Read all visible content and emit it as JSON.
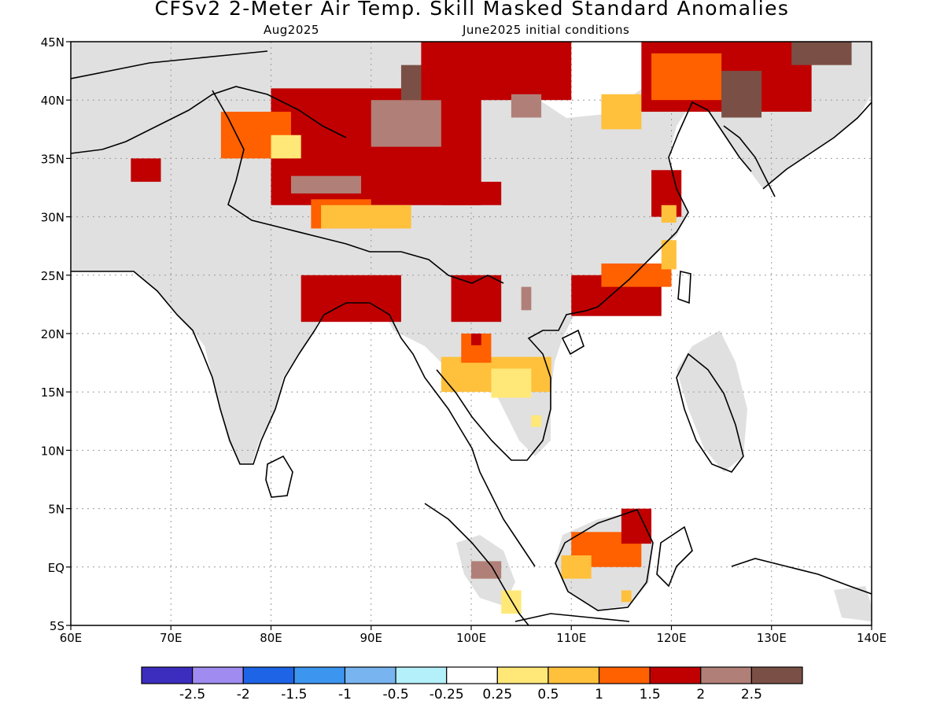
{
  "title": "CFSv2 2-Meter Air Temp. Skill Masked Standard Anomalies",
  "subtitle_left": "Aug2025",
  "subtitle_right": "June2025 initial conditions",
  "chart_data": {
    "type": "map",
    "region": {
      "lon_range": [
        60,
        140
      ],
      "lat_range": [
        -5,
        45
      ]
    },
    "grid": true,
    "lat_labels": [
      "45N",
      "40N",
      "35N",
      "30N",
      "25N",
      "20N",
      "15N",
      "10N",
      "5N",
      "EQ",
      "5S"
    ],
    "lat_values": [
      45,
      40,
      35,
      30,
      25,
      20,
      15,
      10,
      5,
      0,
      -5
    ],
    "lon_labels": [
      "60E",
      "70E",
      "80E",
      "90E",
      "100E",
      "110E",
      "120E",
      "130E",
      "140E"
    ],
    "lon_values": [
      60,
      70,
      80,
      90,
      100,
      110,
      120,
      130,
      140
    ],
    "masked_color": "#e0e0e0",
    "legend": {
      "labels": [
        "-2.5",
        "-2",
        "-1.5",
        "-1",
        "-0.5",
        "-0.25",
        "0.25",
        "0.5",
        "1",
        "1.5",
        "2",
        "2.5"
      ],
      "colors": [
        "#3c2dbe",
        "#a08cf0",
        "#1e64e6",
        "#3c96f0",
        "#78b4f0",
        "#b4f0fa",
        "#ffffff",
        "#ffe878",
        "#ffc03c",
        "#ff6000",
        "#c00000",
        "#b08078",
        "#7a5046"
      ]
    },
    "anomaly_regions": [
      {
        "level": 2,
        "lon": [
          80,
          101
        ],
        "lat": [
          31,
          41
        ]
      },
      {
        "level": 1.5,
        "lon": [
          84,
          90
        ],
        "lat": [
          29,
          31.5
        ]
      },
      {
        "level": 2.5,
        "lon": [
          82,
          89
        ],
        "lat": [
          32,
          33.5
        ]
      },
      {
        "level": 2.5,
        "lon": [
          90,
          97
        ],
        "lat": [
          36,
          40
        ]
      },
      {
        "level": 3,
        "lon": [
          93,
          97
        ],
        "lat": [
          40,
          43
        ]
      },
      {
        "level": 2,
        "lon": [
          95,
          110
        ],
        "lat": [
          40,
          45
        ]
      },
      {
        "level": 2.5,
        "lon": [
          104,
          107
        ],
        "lat": [
          38.5,
          40.5
        ]
      },
      {
        "level": 1,
        "lon": [
          113,
          117
        ],
        "lat": [
          37.5,
          40.5
        ]
      },
      {
        "level": 2,
        "lon": [
          117,
          134
        ],
        "lat": [
          39,
          45
        ]
      },
      {
        "level": 1.5,
        "lon": [
          118,
          125
        ],
        "lat": [
          40,
          44
        ]
      },
      {
        "level": 3,
        "lon": [
          125,
          129
        ],
        "lat": [
          38.5,
          42.5
        ]
      },
      {
        "level": 3,
        "lon": [
          132,
          138
        ],
        "lat": [
          43,
          45
        ]
      },
      {
        "level": 2,
        "lon": [
          66,
          69
        ],
        "lat": [
          33,
          35
        ]
      },
      {
        "level": 1.5,
        "lon": [
          75,
          82
        ],
        "lat": [
          35,
          39
        ]
      },
      {
        "level": 0.5,
        "lon": [
          80,
          83
        ],
        "lat": [
          35,
          37
        ]
      },
      {
        "level": 1,
        "lon": [
          85,
          94
        ],
        "lat": [
          29,
          31
        ]
      },
      {
        "level": 2,
        "lon": [
          97,
          103
        ],
        "lat": [
          31,
          33
        ]
      },
      {
        "level": 2,
        "lon": [
          118,
          121
        ],
        "lat": [
          30,
          34
        ]
      },
      {
        "level": 1,
        "lon": [
          119,
          120.5
        ],
        "lat": [
          29.5,
          31
        ]
      },
      {
        "level": 2,
        "lon": [
          83,
          93
        ],
        "lat": [
          21,
          25
        ]
      },
      {
        "level": 2,
        "lon": [
          98,
          103
        ],
        "lat": [
          21,
          25
        ]
      },
      {
        "level": 2,
        "lon": [
          110,
          119
        ],
        "lat": [
          21.5,
          25
        ]
      },
      {
        "level": 1.5,
        "lon": [
          113,
          120
        ],
        "lat": [
          24,
          26
        ]
      },
      {
        "level": 1,
        "lon": [
          119,
          120.5
        ],
        "lat": [
          25.5,
          28
        ]
      },
      {
        "level": 2.5,
        "lon": [
          105,
          106
        ],
        "lat": [
          22,
          24
        ]
      },
      {
        "level": 1,
        "lon": [
          97,
          108
        ],
        "lat": [
          15,
          18
        ]
      },
      {
        "level": 1.5,
        "lon": [
          99,
          102
        ],
        "lat": [
          17.5,
          20
        ]
      },
      {
        "level": 2,
        "lon": [
          100,
          101
        ],
        "lat": [
          19,
          20
        ]
      },
      {
        "level": 0.5,
        "lon": [
          102,
          106
        ],
        "lat": [
          14.5,
          17
        ]
      },
      {
        "level": 0.5,
        "lon": [
          106,
          107
        ],
        "lat": [
          12,
          13
        ]
      },
      {
        "level": 1.5,
        "lon": [
          110,
          117
        ],
        "lat": [
          0,
          3
        ]
      },
      {
        "level": 1,
        "lon": [
          109,
          112
        ],
        "lat": [
          -1,
          1
        ]
      },
      {
        "level": 2,
        "lon": [
          115,
          118
        ],
        "lat": [
          2,
          5
        ]
      },
      {
        "level": 2.5,
        "lon": [
          100,
          103
        ],
        "lat": [
          -1,
          0.5
        ]
      },
      {
        "level": 0.5,
        "lon": [
          103,
          105
        ],
        "lat": [
          -4,
          -2
        ]
      },
      {
        "level": 1,
        "lon": [
          115,
          116
        ],
        "lat": [
          -3,
          -2
        ]
      }
    ]
  }
}
